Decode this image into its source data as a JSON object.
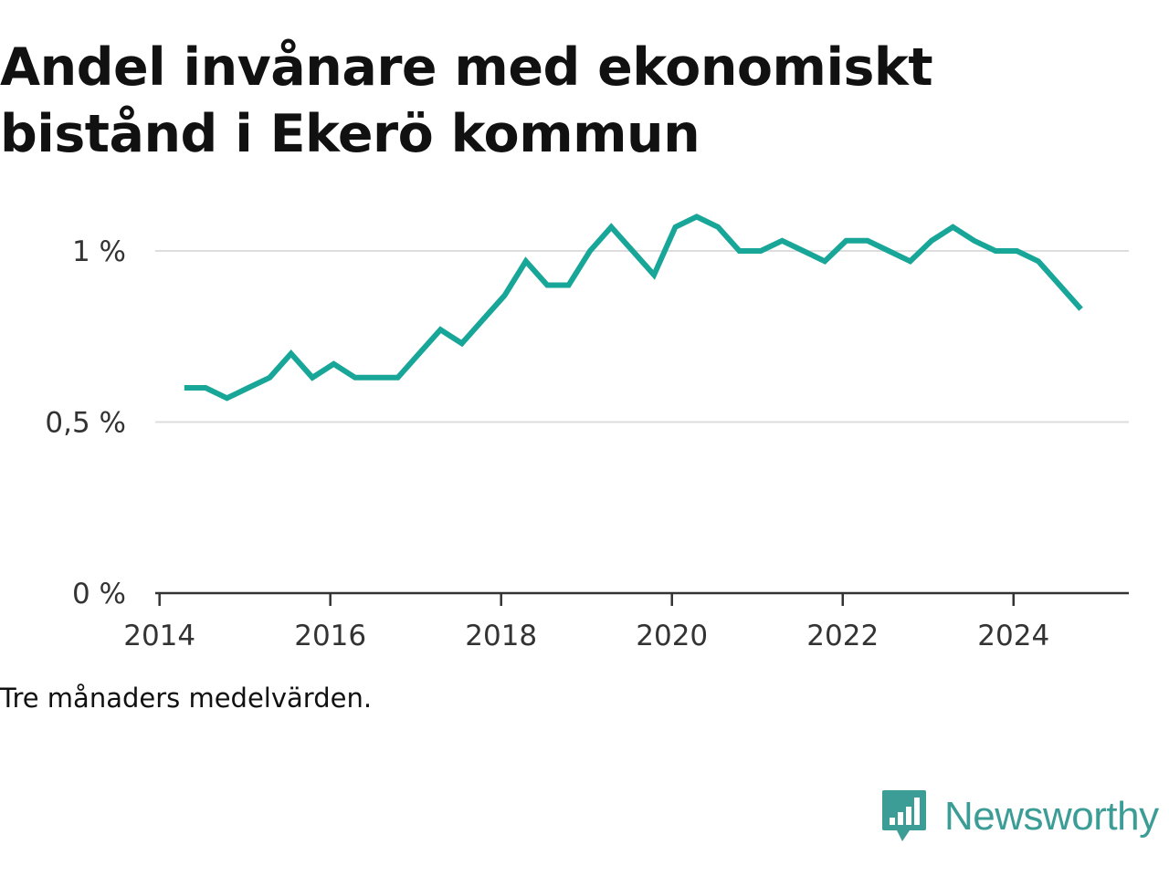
{
  "chart_data": {
    "type": "line",
    "title": "Andel invånare med ekonomiskt bistånd i Ekerö kommun",
    "caption": "Tre månaders medelvärden.",
    "xlabel": "",
    "ylabel": "",
    "xlim": [
      2013.95,
      2025.35
    ],
    "ylim": [
      0,
      1.2
    ],
    "x_ticks": [
      {
        "value": 2014,
        "label": "2014"
      },
      {
        "value": 2016,
        "label": "2016"
      },
      {
        "value": 2018,
        "label": "2018"
      },
      {
        "value": 2020,
        "label": "2020"
      },
      {
        "value": 2022,
        "label": "2022"
      },
      {
        "value": 2024,
        "label": "2024"
      }
    ],
    "y_ticks": [
      {
        "value": 0,
        "label": "0 %"
      },
      {
        "value": 0.5,
        "label": "0,5 %"
      },
      {
        "value": 1,
        "label": "1 %"
      }
    ],
    "grid": true,
    "line_color": "#18a698",
    "series": [
      {
        "x": [
          2014.29,
          2014.54,
          2014.79,
          2015.04,
          2015.29,
          2015.54,
          2015.79,
          2016.04,
          2016.29,
          2016.54,
          2016.79,
          2017.04,
          2017.29,
          2017.54,
          2017.79,
          2018.04,
          2018.29,
          2018.54,
          2018.79,
          2019.04,
          2019.29,
          2019.54,
          2019.79,
          2020.04,
          2020.29,
          2020.54,
          2020.79,
          2021.04,
          2021.29,
          2021.54,
          2021.79,
          2022.04,
          2022.29,
          2022.54,
          2022.79,
          2023.04,
          2023.29,
          2023.54,
          2023.79,
          2024.04,
          2024.29,
          2024.54,
          2024.79
        ],
        "values": [
          0.6,
          0.6,
          0.57,
          0.6,
          0.63,
          0.7,
          0.63,
          0.67,
          0.63,
          0.63,
          0.63,
          0.7,
          0.77,
          0.73,
          0.8,
          0.87,
          0.97,
          0.9,
          0.9,
          1.0,
          1.07,
          1.0,
          0.93,
          1.07,
          1.1,
          1.07,
          1.0,
          1.0,
          1.03,
          1.0,
          0.97,
          1.03,
          1.03,
          1.0,
          0.97,
          1.03,
          1.07,
          1.03,
          1.0,
          1.0,
          0.97,
          0.9,
          0.83
        ]
      }
    ]
  },
  "brand": {
    "name": "Newsworthy",
    "color": "#3b9d95",
    "icon": "bar-chart-speech-bubble-icon"
  }
}
